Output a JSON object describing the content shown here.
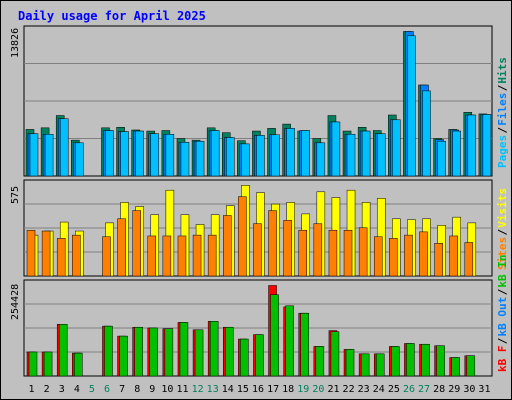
{
  "title": "Daily usage for April 2025",
  "colors": {
    "hits": "#00805c",
    "files": "#0080ff",
    "pages": "#00c0ff",
    "visits": "#ffff00",
    "sites": "#ff8000",
    "kb_in": "#00c000",
    "kb_out": "#0080ff",
    "kb_f": "#ff0000",
    "background": "#c0c0c0",
    "text": "#0000ff"
  },
  "legends": {
    "top": [
      {
        "text": "Pages",
        "color": "#00c0ff"
      },
      {
        "text": "/",
        "color": "#000000"
      },
      {
        "text": "Files",
        "color": "#0080ff"
      },
      {
        "text": "/",
        "color": "#000000"
      },
      {
        "text": "Hits",
        "color": "#00805c"
      }
    ],
    "middle": [
      {
        "text": "Sites",
        "color": "#ff8000"
      },
      {
        "text": "/",
        "color": "#000000"
      },
      {
        "text": "Visits",
        "color": "#ffff00"
      }
    ],
    "bottom": [
      {
        "text": "kB F",
        "color": "#ff0000"
      },
      {
        "text": "/",
        "color": "#000000"
      },
      {
        "text": "kB Out",
        "color": "#0080ff"
      },
      {
        "text": "/",
        "color": "#000000"
      },
      {
        "text": "kB In",
        "color": "#00c000"
      }
    ]
  },
  "chart_data": [
    {
      "type": "bar",
      "name": "hits-files-pages",
      "categories": [
        "1",
        "2",
        "3",
        "4",
        "5",
        "6",
        "7",
        "8",
        "9",
        "10",
        "11",
        "12",
        "13",
        "14",
        "15",
        "16",
        "17",
        "18",
        "19",
        "20",
        "21",
        "22",
        "23",
        "24",
        "25",
        "26",
        "27",
        "28",
        "29",
        "30",
        "31"
      ],
      "y_label": "13826",
      "ylim": [
        0,
        13826
      ],
      "series": [
        {
          "name": "Hits",
          "values": [
            4350,
            4500,
            5650,
            3350,
            0,
            4500,
            4550,
            4300,
            4200,
            4250,
            3500,
            3350,
            4500,
            4050,
            3300,
            4200,
            4450,
            4850,
            4200,
            3500,
            5650,
            4200,
            4550,
            4250,
            5700,
            13500,
            8500,
            3500,
            4350,
            5950,
            5800
          ]
        },
        {
          "name": "Files",
          "values": [
            3950,
            3900,
            5350,
            3100,
            0,
            4250,
            4150,
            4200,
            3950,
            3900,
            3150,
            3250,
            4250,
            3600,
            3000,
            3800,
            3850,
            4450,
            4250,
            3100,
            5050,
            3900,
            4200,
            3950,
            5250,
            13500,
            8500,
            3400,
            4300,
            5700,
            5750
          ]
        },
        {
          "name": "Pages",
          "values": [
            3950,
            3900,
            5350,
            3100,
            0,
            4250,
            4150,
            4200,
            3950,
            3900,
            3150,
            3250,
            4250,
            3600,
            3000,
            3800,
            3850,
            4450,
            4250,
            3100,
            5050,
            3900,
            4200,
            3950,
            5250,
            13100,
            7950,
            3250,
            4200,
            5700,
            5750
          ]
        }
      ]
    },
    {
      "type": "bar",
      "name": "visits-sites",
      "categories": [
        "1",
        "2",
        "3",
        "4",
        "5",
        "6",
        "7",
        "8",
        "9",
        "10",
        "11",
        "12",
        "13",
        "14",
        "15",
        "16",
        "17",
        "18",
        "19",
        "20",
        "21",
        "22",
        "23",
        "24",
        "25",
        "26",
        "27",
        "28",
        "29",
        "30",
        "31"
      ],
      "y_label": "575",
      "ylim": [
        0,
        575
      ],
      "series": [
        {
          "name": "Visits",
          "values": [
            250,
            275,
            330,
            275,
            0,
            325,
            450,
            425,
            375,
            525,
            375,
            315,
            375,
            430,
            555,
            510,
            440,
            450,
            380,
            515,
            480,
            525,
            450,
            475,
            350,
            345,
            350,
            310,
            360,
            325,
            0
          ]
        },
        {
          "name": "Sites",
          "values": [
            280,
            275,
            230,
            250,
            0,
            240,
            350,
            400,
            245,
            245,
            245,
            250,
            250,
            370,
            485,
            320,
            400,
            340,
            280,
            320,
            280,
            280,
            295,
            240,
            230,
            250,
            270,
            200,
            245,
            205,
            0
          ]
        }
      ]
    },
    {
      "type": "bar",
      "name": "kb",
      "categories": [
        "1",
        "2",
        "3",
        "4",
        "5",
        "6",
        "7",
        "8",
        "9",
        "10",
        "11",
        "12",
        "13",
        "14",
        "15",
        "16",
        "17",
        "18",
        "19",
        "20",
        "21",
        "22",
        "23",
        "24",
        "25",
        "26",
        "27",
        "28",
        "29",
        "30",
        "31"
      ],
      "y_label": "254428",
      "ylim": [
        0,
        254428
      ],
      "series": [
        {
          "name": "kB F",
          "values": [
            65000,
            65000,
            140000,
            62000,
            0,
            135000,
            108000,
            132000,
            130000,
            128000,
            145000,
            125000,
            148000,
            132000,
            100000,
            112000,
            245000,
            187000,
            170000,
            80000,
            123000,
            72000,
            60000,
            60000,
            80000,
            88000,
            86000,
            82000,
            50000,
            55000,
            0
          ]
        },
        {
          "name": "kB Out",
          "values": [
            0,
            0,
            0,
            0,
            0,
            0,
            0,
            0,
            0,
            0,
            0,
            0,
            0,
            0,
            0,
            0,
            0,
            0,
            0,
            0,
            0,
            0,
            0,
            0,
            0,
            0,
            0,
            0,
            0,
            0,
            0
          ]
        },
        {
          "name": "kB In",
          "values": [
            65000,
            65000,
            140000,
            62000,
            0,
            135000,
            108000,
            132000,
            130000,
            128000,
            145000,
            125000,
            148000,
            132000,
            100000,
            112000,
            220000,
            190000,
            170000,
            80000,
            120000,
            72000,
            60000,
            60000,
            80000,
            88000,
            86000,
            82000,
            50000,
            55000,
            0
          ]
        }
      ]
    }
  ],
  "x_axis": {
    "labels": [
      "1",
      "2",
      "3",
      "4",
      "5",
      "6",
      "7",
      "8",
      "9",
      "10",
      "11",
      "12",
      "13",
      "14",
      "15",
      "16",
      "17",
      "18",
      "19",
      "20",
      "21",
      "22",
      "23",
      "24",
      "25",
      "26",
      "27",
      "28",
      "29",
      "30",
      "31"
    ],
    "weekend_color": "#00805c",
    "weekday_color": "#000000",
    "weekend_days": [
      "5",
      "6",
      "12",
      "13",
      "19",
      "20",
      "26",
      "27"
    ]
  }
}
